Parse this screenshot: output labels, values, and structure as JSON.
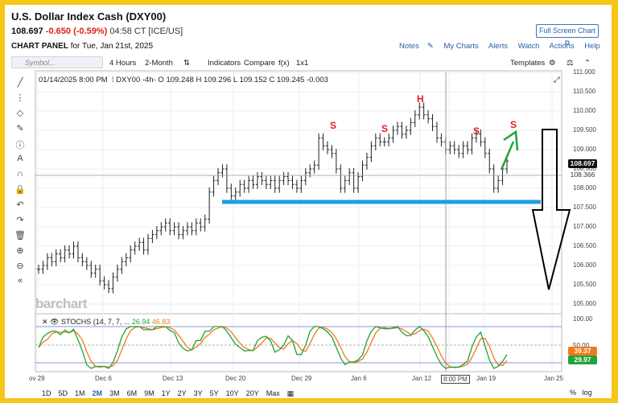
{
  "header": {
    "title": "U.S. Dollar Index Cash (DXY00)",
    "price": "108.697",
    "change": "-0.650 (-0.59%)",
    "time": "04:58 CT [ICE/US]",
    "fullscreen": "Full Screen Chart",
    "panel_label": "CHART PANEL",
    "panel_date": "for Tue, Jan 21st, 2025"
  },
  "links": [
    "Notes",
    "My Charts",
    "Alerts",
    "Watch",
    "Actions",
    "Help"
  ],
  "toolbar": {
    "symbol_placeholder": "Symbol...",
    "interval": "4 Hours",
    "range": "2-Month",
    "indicators": "Indicators",
    "compare": "Compare",
    "fx": "f(x)",
    "layout": "1x1",
    "templates": "Templates"
  },
  "legend": {
    "date": "01/14/2025 8:00 PM",
    "symbol": "DXY00 -4h-",
    "o": "O 109.248",
    "h": "H 109.296",
    "l": "L 109.152",
    "c": "C 109.245",
    "chg": "-0.003"
  },
  "price_axis": [
    "111.000",
    "110.500",
    "110.000",
    "109.500",
    "109.000",
    "108.500",
    "108.000",
    "107.500",
    "107.000",
    "106.500",
    "106.000",
    "105.500",
    "105.000"
  ],
  "price_labels": {
    "last": "108.697",
    "ref": "108.366"
  },
  "stoch": {
    "label": "STOCHS (14, 7, 7, ...",
    "k": "26.94",
    "d": "46.83",
    "axis": [
      "100.00",
      "50.00"
    ],
    "val1": "39.37",
    "val2": "29.97"
  },
  "x_axis": [
    "ov 29",
    "Dec 6",
    "Dec 13",
    "Dec 20",
    "Dec 29",
    "Jan 6",
    "Jan 12",
    "8:00 PM",
    "Jan 19",
    "Jan 25"
  ],
  "annotations": {
    "s": "S",
    "h": "H"
  },
  "logo": "barchart",
  "timeframes": [
    "1D",
    "5D",
    "1M",
    "2M",
    "3M",
    "6M",
    "9M",
    "1Y",
    "2Y",
    "3Y",
    "5Y",
    "10Y",
    "20Y",
    "Max"
  ],
  "bottom_right": [
    "%",
    "log"
  ],
  "colors": {
    "support": "#1ea0dc",
    "arrow_up": "#1fa33a",
    "annot": "#e02020",
    "stoch_k": "#1fa33a",
    "stoch_d": "#f07a1c"
  },
  "chart_data": {
    "type": "ohlc",
    "ylim": [
      105,
      111
    ],
    "close": [
      105.9,
      106.0,
      106.2,
      106.1,
      106.3,
      106.2,
      106.4,
      106.3,
      106.5,
      106.2,
      106.1,
      106.0,
      105.8,
      105.9,
      105.6,
      105.5,
      105.4,
      105.7,
      105.9,
      106.1,
      106.2,
      106.4,
      106.5,
      106.6,
      106.4,
      106.7,
      106.8,
      106.9,
      107.0,
      107.1,
      106.9,
      107.0,
      106.8,
      106.9,
      107.0,
      106.9,
      107.1,
      107.0,
      107.2,
      107.9,
      108.2,
      108.4,
      108.5,
      108.0,
      107.8,
      107.9,
      108.1,
      108.0,
      108.2,
      108.1,
      108.3,
      108.2,
      108.1,
      108.2,
      108.0,
      108.2,
      108.3,
      108.2,
      108.1,
      108.0,
      108.2,
      108.4,
      108.5,
      108.6,
      109.3,
      109.1,
      109.0,
      108.9,
      108.5,
      108.0,
      108.2,
      108.4,
      108.0,
      108.3,
      108.6,
      108.8,
      109.1,
      109.3,
      109.2,
      109.2,
      109.3,
      109.5,
      109.6,
      109.4,
      109.5,
      109.7,
      109.9,
      110.1,
      109.9,
      109.8,
      109.6,
      109.3,
      109.2,
      109.0,
      109.1,
      109.0,
      108.9,
      109.1,
      109.0,
      109.3,
      109.4,
      109.2,
      108.9,
      108.5,
      108.0,
      108.2,
      108.5,
      108.7
    ]
  }
}
